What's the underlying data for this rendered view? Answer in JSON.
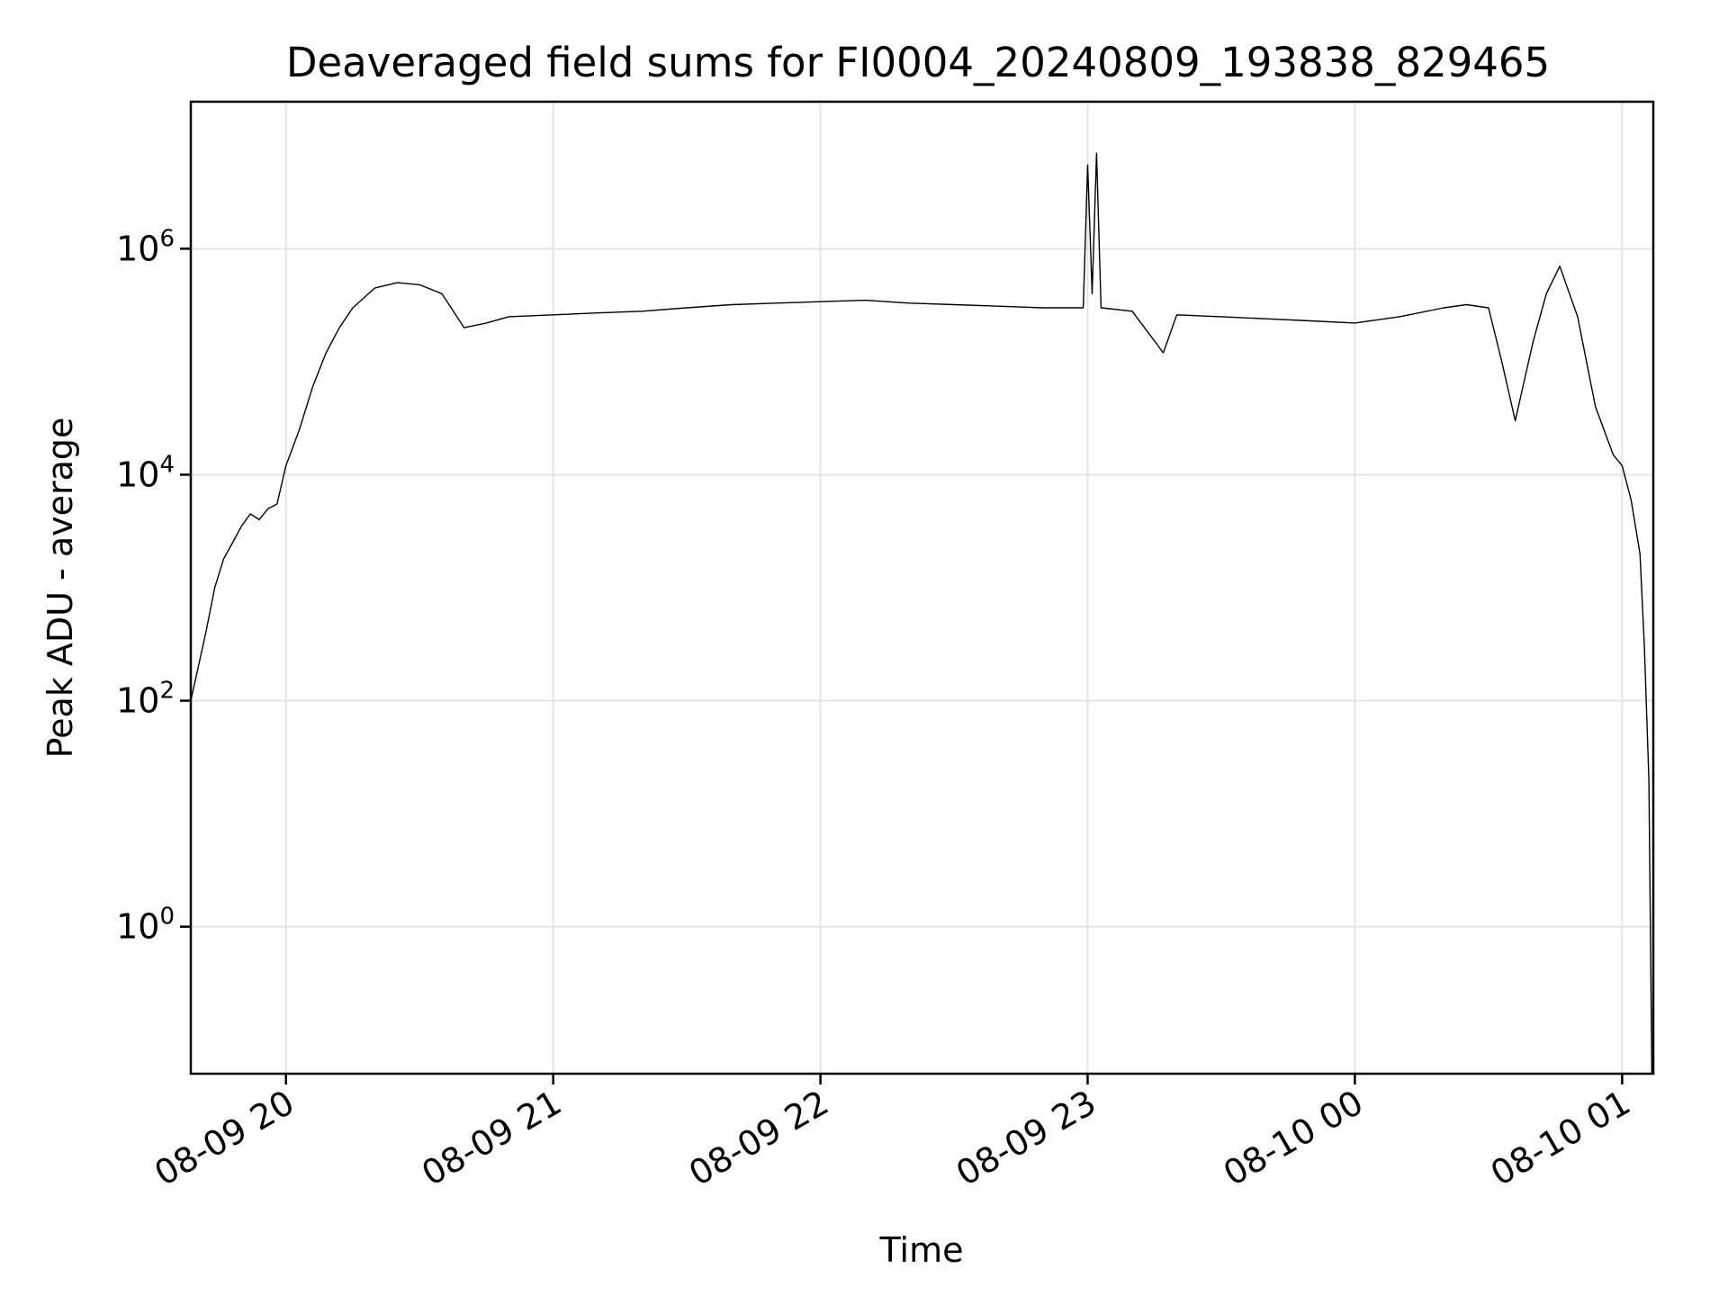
{
  "chart_data": {
    "type": "line",
    "title": "Deaveraged field sums for FI0004_20240809_193838_829465",
    "xlabel": "Time",
    "ylabel": "Peak ADU - average",
    "yscale": "log",
    "grid": true,
    "legend": "none",
    "colors": {
      "line": "#000000",
      "grid": "#e4e4e4"
    },
    "xlim": [
      "2024-08-09 19:38:38",
      "2024-08-10 01:07:00"
    ],
    "ylim": [
      0.05,
      20000000
    ],
    "x_ticks": [
      "08-09 20",
      "08-09 21",
      "08-09 22",
      "08-09 23",
      "08-10 00",
      "08-10 01"
    ],
    "y_ticks": [
      {
        "base": "10",
        "exp": "0",
        "value": 1
      },
      {
        "base": "10",
        "exp": "2",
        "value": 100
      },
      {
        "base": "10",
        "exp": "4",
        "value": 10000
      },
      {
        "base": "10",
        "exp": "6",
        "value": 1000000
      }
    ],
    "series": [
      {
        "x": [
          "2024-08-09 19:38:38",
          "2024-08-09 19:42",
          "2024-08-09 19:44",
          "2024-08-09 19:46",
          "2024-08-09 19:48",
          "2024-08-09 19:50",
          "2024-08-09 19:52",
          "2024-08-09 19:54",
          "2024-08-09 19:56",
          "2024-08-09 19:58",
          "2024-08-09 20:00",
          "2024-08-09 20:03",
          "2024-08-09 20:06",
          "2024-08-09 20:09",
          "2024-08-09 20:12",
          "2024-08-09 20:15",
          "2024-08-09 20:20",
          "2024-08-09 20:25",
          "2024-08-09 20:30",
          "2024-08-09 20:35",
          "2024-08-09 20:40",
          "2024-08-09 20:45",
          "2024-08-09 20:50",
          "2024-08-09 21:00",
          "2024-08-09 21:10",
          "2024-08-09 21:20",
          "2024-08-09 21:30",
          "2024-08-09 21:40",
          "2024-08-09 21:50",
          "2024-08-09 22:00",
          "2024-08-09 22:10",
          "2024-08-09 22:20",
          "2024-08-09 22:30",
          "2024-08-09 22:40",
          "2024-08-09 22:50",
          "2024-08-09 22:59",
          "2024-08-09 23:00",
          "2024-08-09 23:01",
          "2024-08-09 23:02",
          "2024-08-09 23:03",
          "2024-08-09 23:10",
          "2024-08-09 23:17",
          "2024-08-09 23:20",
          "2024-08-09 23:30",
          "2024-08-09 23:40",
          "2024-08-09 23:50",
          "2024-08-10 00:00",
          "2024-08-10 00:10",
          "2024-08-10 00:20",
          "2024-08-10 00:25",
          "2024-08-10 00:30",
          "2024-08-10 00:33",
          "2024-08-10 00:36",
          "2024-08-10 00:40",
          "2024-08-10 00:43",
          "2024-08-10 00:46",
          "2024-08-10 00:50",
          "2024-08-10 00:54",
          "2024-08-10 00:58",
          "2024-08-10 01:00",
          "2024-08-10 01:02",
          "2024-08-10 01:04",
          "2024-08-10 01:05",
          "2024-08-10 01:06",
          "2024-08-10 01:06:40"
        ],
        "y": [
          100,
          400,
          1000,
          1800,
          2500,
          3500,
          4500,
          4000,
          5000,
          5500,
          12000,
          25000,
          60000,
          120000,
          200000,
          300000,
          450000,
          500000,
          480000,
          400000,
          200000,
          220000,
          250000,
          260000,
          270000,
          280000,
          300000,
          320000,
          330000,
          340000,
          350000,
          330000,
          320000,
          310000,
          300000,
          300000,
          5500000,
          400000,
          7000000,
          300000,
          280000,
          120000,
          260000,
          250000,
          240000,
          230000,
          220000,
          250000,
          300000,
          320000,
          300000,
          100000,
          30000,
          150000,
          400000,
          700000,
          250000,
          40000,
          15000,
          12000,
          6000,
          2000,
          300,
          20,
          0.05
        ]
      }
    ]
  }
}
